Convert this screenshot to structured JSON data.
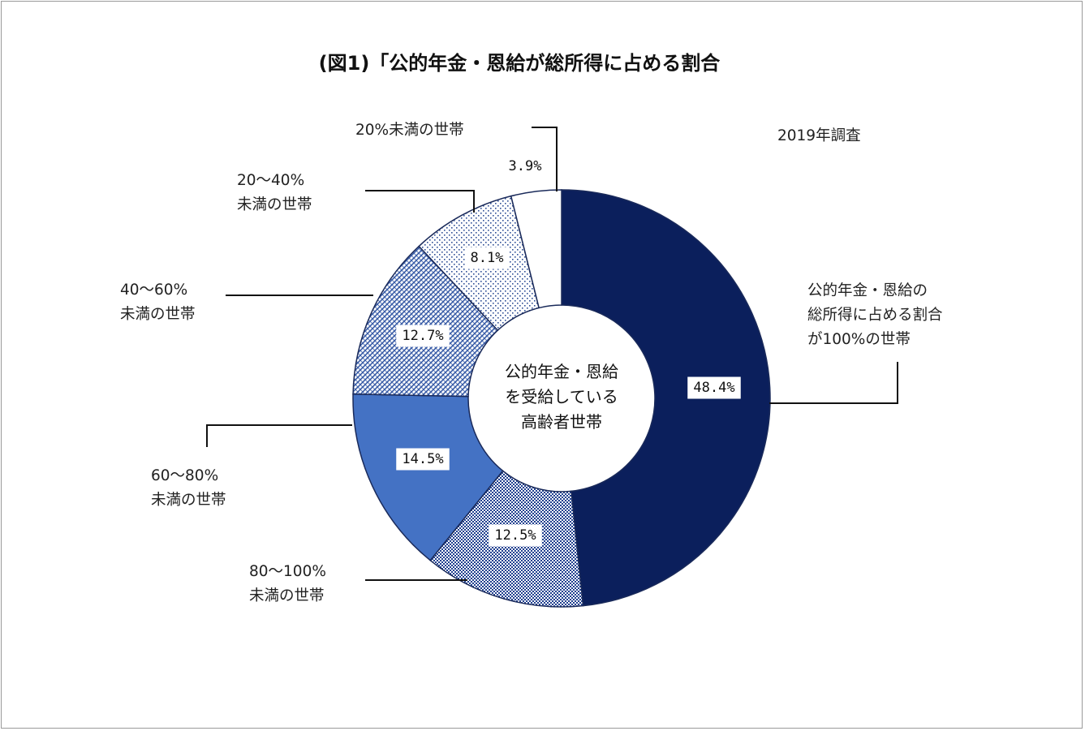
{
  "chart_data": {
    "type": "pie",
    "title": "(図1)「公的年金・恩給が総所得に占める割合",
    "note": "2019年調査",
    "center_label": [
      "公的年金・恩給",
      "を受給している",
      "高齢者世帯"
    ],
    "slices": [
      {
        "category": [
          "公的年金・恩給の",
          "総所得に占める割合",
          "が100%の世帯"
        ],
        "value": 48.4,
        "value_label": "48.4%",
        "color": "#0b1f5c",
        "pattern": "solid"
      },
      {
        "category": [
          "80～100%",
          "未満の世帯"
        ],
        "value": 12.5,
        "value_label": "12.5%",
        "color": "#1f3f8f",
        "pattern": "dense-check"
      },
      {
        "category": [
          "60～80%",
          "未満の世帯"
        ],
        "value": 14.5,
        "value_label": "14.5%",
        "color": "#4472c4",
        "pattern": "solid"
      },
      {
        "category": [
          "40～60%",
          "未満の世帯"
        ],
        "value": 12.7,
        "value_label": "12.7%",
        "color": "#3b5ea8",
        "pattern": "cross-hatch"
      },
      {
        "category": [
          "20～40%",
          "未満の世帯"
        ],
        "value": 8.1,
        "value_label": "8.1%",
        "color": "#2f4f96",
        "pattern": "dots"
      },
      {
        "category": [
          "20%未満の世帯"
        ],
        "value": 3.9,
        "value_label": "3.9%",
        "color": "#ffffff",
        "pattern": "none"
      }
    ]
  }
}
